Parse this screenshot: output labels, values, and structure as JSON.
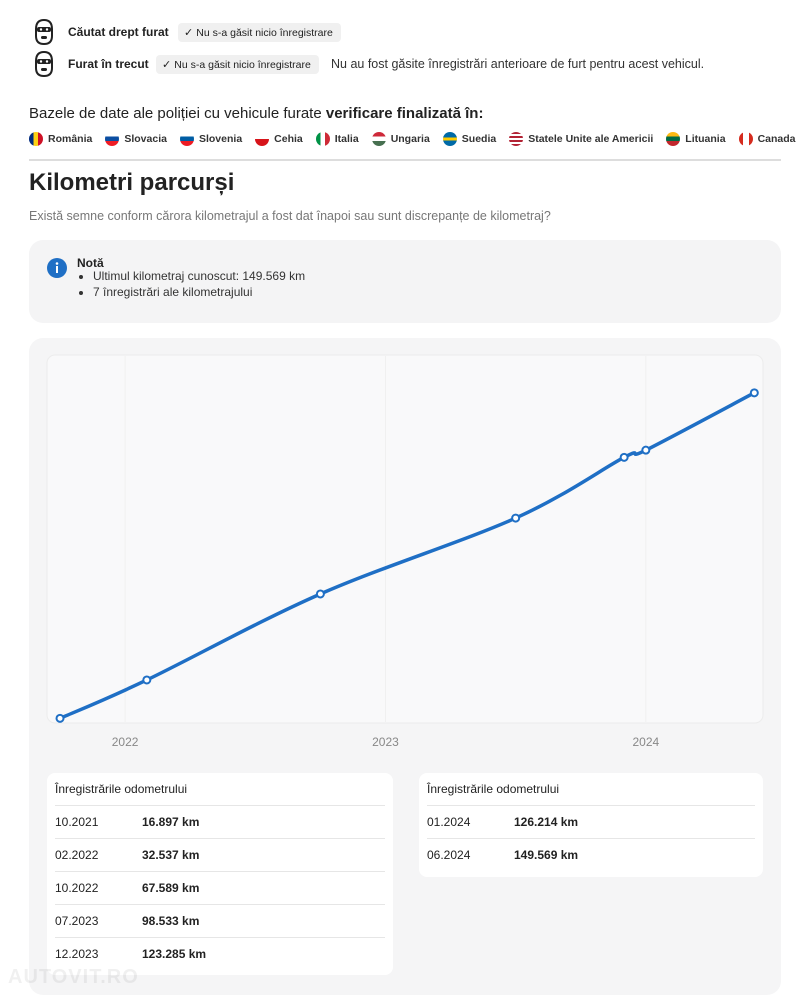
{
  "theft": {
    "rows": [
      {
        "label": "Căutat drept furat",
        "badge": "Nu s-a găsit nicio înregistrare"
      },
      {
        "label": "Furat în trecut",
        "badge": "Nu s-a găsit nicio înregistrare",
        "note": "Nu au fost găsite înregistrări anterioare de furt pentru acest vehicul."
      }
    ],
    "databases_text": "Bazele de date ale poliției cu vehicule furate",
    "databases_bold": "verificare finalizată în:",
    "countries": [
      "România",
      "Slovacia",
      "Slovenia",
      "Cehia",
      "Italia",
      "Ungaria",
      "Suedia",
      "Statele Unite ale Americii",
      "Lituania",
      "Canada"
    ]
  },
  "mileage": {
    "title": "Kilometri parcurși",
    "subtitle": "Există semne conform cărora kilometrajul a fost dat înapoi sau sunt discrepanțe de kilometraj?",
    "note_title": "Notă",
    "note_items": [
      "Ultimul kilometraj cunoscut: 149.569 km",
      "7 înregistrări ale kilometrajului"
    ],
    "table_titles": [
      "Înregistrările odometrului",
      "Înregistrările odometrului"
    ]
  },
  "chart_data": {
    "type": "line",
    "x": [
      "10.2021",
      "02.2022",
      "10.2022",
      "07.2023",
      "12.2023",
      "01.2024",
      "06.2024"
    ],
    "values": [
      16897,
      32537,
      67589,
      98533,
      123285,
      126214,
      149569
    ],
    "value_labels": [
      "16.897 km",
      "32.537 km",
      "67.589 km",
      "98.533 km",
      "123.285 km",
      "126.214 km",
      "149.569 km"
    ],
    "color": "#1f6fc5",
    "xlim": [
      2021.7,
      2024.45
    ],
    "xticks": [
      2022,
      2023,
      2024
    ],
    "ylim": [
      15000,
      165000
    ]
  },
  "watermark": "AUTOVIT.RO"
}
